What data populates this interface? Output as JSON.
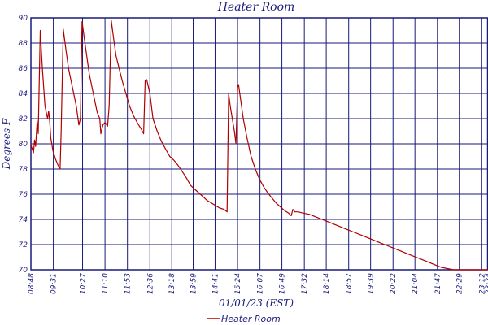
{
  "chart_data": {
    "type": "line",
    "title": "Heater Room",
    "xlabel": "01/01/23 (EST)",
    "ylabel": "Degrees F",
    "ylim": [
      70,
      90
    ],
    "xlim": [
      "08:48",
      "23:24"
    ],
    "grid": true,
    "legend_position": "bottom-center",
    "x_tick_labels": [
      "08:48",
      "09:31",
      "10:27",
      "11:10",
      "11:53",
      "12:36",
      "13:18",
      "13:59",
      "14:41",
      "15:24",
      "16:07",
      "16:49",
      "17:32",
      "18:14",
      "18:57",
      "19:39",
      "20:22",
      "21:04",
      "21:47",
      "22:29",
      "23:12",
      "23:24"
    ],
    "y_ticks": [
      70,
      72,
      74,
      76,
      78,
      80,
      82,
      84,
      86,
      88,
      90
    ],
    "colors": {
      "line": "#b00000",
      "grid": "#1a1a7a",
      "text": "#1a1a7a"
    },
    "series": [
      {
        "name": "Heater Room",
        "points": [
          [
            "08:48",
            79.9
          ],
          [
            "08:53",
            79.3
          ],
          [
            "08:55",
            80.3
          ],
          [
            "08:57",
            79.8
          ],
          [
            "09:00",
            81.8
          ],
          [
            "09:02",
            80.8
          ],
          [
            "09:06",
            89.0
          ],
          [
            "09:10",
            86.0
          ],
          [
            "09:15",
            83.0
          ],
          [
            "09:20",
            82.0
          ],
          [
            "09:22",
            82.6
          ],
          [
            "09:24",
            81.8
          ],
          [
            "09:26",
            80.5
          ],
          [
            "09:30",
            79.5
          ],
          [
            "09:35",
            78.8
          ],
          [
            "09:40",
            78.3
          ],
          [
            "09:44",
            78.0
          ],
          [
            "09:46",
            81.0
          ],
          [
            "09:50",
            89.1
          ],
          [
            "09:55",
            87.5
          ],
          [
            "10:00",
            86.0
          ],
          [
            "10:05",
            85.0
          ],
          [
            "10:10",
            84.0
          ],
          [
            "10:15",
            83.0
          ],
          [
            "10:20",
            81.5
          ],
          [
            "10:23",
            82.0
          ],
          [
            "10:26",
            89.7
          ],
          [
            "10:30",
            88.5
          ],
          [
            "10:35",
            87.0
          ],
          [
            "10:40",
            85.5
          ],
          [
            "10:45",
            84.5
          ],
          [
            "10:50",
            83.5
          ],
          [
            "10:55",
            82.5
          ],
          [
            "11:00",
            82.0
          ],
          [
            "11:02",
            80.8
          ],
          [
            "11:06",
            81.5
          ],
          [
            "11:10",
            81.7
          ],
          [
            "11:15",
            81.4
          ],
          [
            "11:18",
            83.0
          ],
          [
            "11:22",
            89.8
          ],
          [
            "11:26",
            88.5
          ],
          [
            "11:31",
            87.0
          ],
          [
            "11:37",
            86.0
          ],
          [
            "11:43",
            85.0
          ],
          [
            "11:50",
            84.0
          ],
          [
            "11:57",
            83.0
          ],
          [
            "12:05",
            82.2
          ],
          [
            "12:13",
            81.6
          ],
          [
            "12:19",
            81.2
          ],
          [
            "12:24",
            80.8
          ],
          [
            "12:27",
            85.0
          ],
          [
            "12:30",
            85.1
          ],
          [
            "12:36",
            84.0
          ],
          [
            "12:42",
            82.0
          ],
          [
            "12:50",
            81.0
          ],
          [
            "12:58",
            80.2
          ],
          [
            "13:06",
            79.6
          ],
          [
            "13:14",
            79.0
          ],
          [
            "13:22",
            78.7
          ],
          [
            "13:30",
            78.3
          ],
          [
            "13:38",
            77.8
          ],
          [
            "13:46",
            77.3
          ],
          [
            "13:54",
            76.7
          ],
          [
            "14:02",
            76.4
          ],
          [
            "14:10",
            76.1
          ],
          [
            "14:18",
            75.8
          ],
          [
            "14:26",
            75.5
          ],
          [
            "14:34",
            75.3
          ],
          [
            "14:42",
            75.1
          ],
          [
            "14:50",
            74.9
          ],
          [
            "14:58",
            74.8
          ],
          [
            "15:04",
            74.6
          ],
          [
            "15:07",
            84.0
          ],
          [
            "15:10",
            83.0
          ],
          [
            "15:14",
            82.0
          ],
          [
            "15:18",
            81.0
          ],
          [
            "15:21",
            80.0
          ],
          [
            "15:24",
            84.5
          ],
          [
            "15:26",
            84.7
          ],
          [
            "15:30",
            83.5
          ],
          [
            "15:35",
            82.0
          ],
          [
            "15:42",
            80.5
          ],
          [
            "15:50",
            79.0
          ],
          [
            "15:58",
            78.0
          ],
          [
            "16:06",
            77.2
          ],
          [
            "16:14",
            76.6
          ],
          [
            "16:22",
            76.1
          ],
          [
            "16:30",
            75.7
          ],
          [
            "16:38",
            75.3
          ],
          [
            "16:46",
            75.0
          ],
          [
            "16:54",
            74.7
          ],
          [
            "17:02",
            74.5
          ],
          [
            "17:07",
            74.3
          ],
          [
            "17:10",
            74.8
          ],
          [
            "17:14",
            74.6
          ],
          [
            "17:20",
            74.6
          ],
          [
            "17:30",
            74.5
          ],
          [
            "17:42",
            74.4
          ],
          [
            "17:54",
            74.2
          ],
          [
            "18:06",
            74.0
          ],
          [
            "18:18",
            73.8
          ],
          [
            "18:30",
            73.6
          ],
          [
            "18:42",
            73.4
          ],
          [
            "18:54",
            73.2
          ],
          [
            "19:06",
            73.0
          ],
          [
            "19:18",
            72.8
          ],
          [
            "19:30",
            72.6
          ],
          [
            "19:42",
            72.4
          ],
          [
            "19:54",
            72.2
          ],
          [
            "20:06",
            72.0
          ],
          [
            "20:18",
            71.8
          ],
          [
            "20:30",
            71.6
          ],
          [
            "20:42",
            71.4
          ],
          [
            "20:54",
            71.2
          ],
          [
            "21:06",
            71.0
          ],
          [
            "21:18",
            70.8
          ],
          [
            "21:30",
            70.6
          ],
          [
            "21:42",
            70.4
          ],
          [
            "21:54",
            70.2
          ],
          [
            "22:06",
            70.1
          ],
          [
            "22:18",
            70.0
          ],
          [
            "22:30",
            70.0
          ],
          [
            "22:42",
            70.0
          ],
          [
            "22:54",
            70.0
          ],
          [
            "23:06",
            70.0
          ],
          [
            "23:18",
            70.0
          ],
          [
            "23:24",
            70.0
          ]
        ]
      }
    ]
  }
}
